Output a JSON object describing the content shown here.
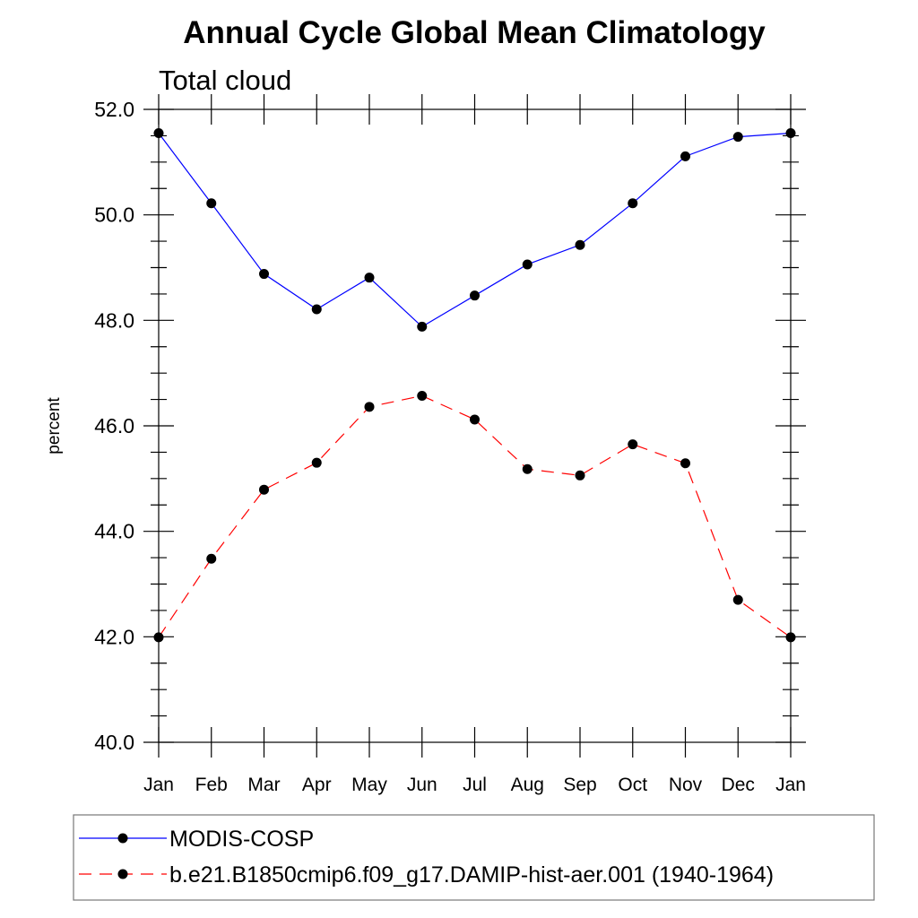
{
  "chart_data": {
    "type": "line",
    "title": "Annual Cycle Global Mean Climatology",
    "subtitle": "Total cloud",
    "xlabel": "",
    "ylabel": "percent",
    "ylim": [
      40,
      52
    ],
    "yticks": [
      "40.0",
      "42.0",
      "44.0",
      "46.0",
      "48.0",
      "50.0",
      "52.0"
    ],
    "categories": [
      "Jan",
      "Feb",
      "Mar",
      "Apr",
      "May",
      "Jun",
      "Jul",
      "Aug",
      "Sep",
      "Oct",
      "Nov",
      "Dec",
      "Jan"
    ],
    "grid": false,
    "legend_position": "bottom",
    "series": [
      {
        "name": "MODIS-COSP",
        "color": "#0000ff",
        "dash": "solid",
        "marker": "circle",
        "values": [
          51.55,
          50.22,
          48.88,
          48.21,
          48.81,
          47.88,
          48.47,
          49.06,
          49.43,
          50.22,
          51.11,
          51.48,
          51.55
        ]
      },
      {
        "name": "b.e21.B1850cmip6.f09_g17.DAMIP-hist-aer.001 (1940-1964)",
        "color": "#ff0000",
        "dash": "dashed",
        "marker": "circle",
        "values": [
          41.99,
          43.48,
          44.79,
          45.3,
          46.36,
          46.57,
          46.12,
          45.18,
          45.06,
          45.65,
          45.29,
          42.7,
          41.99
        ]
      }
    ]
  }
}
